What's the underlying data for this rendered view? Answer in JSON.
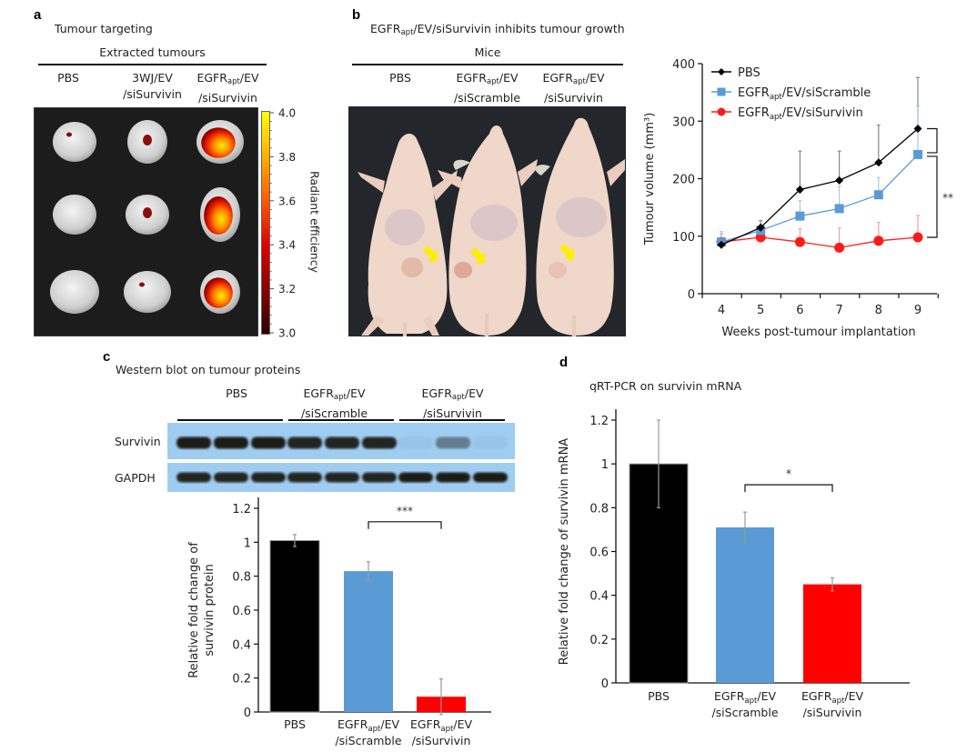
{
  "panel_a": {
    "letter": "a",
    "title": "Tumour targeting",
    "group_header": "Extracted tumours",
    "columns": [
      {
        "line1": "PBS",
        "line2": ""
      },
      {
        "line1": "3WJ/EV",
        "line2": "/siSurvivin"
      },
      {
        "line1_main": "EGFR",
        "line1_sub": "apt",
        "line1_rest": "/EV",
        "line2": "/siSurvivin"
      }
    ],
    "colorbar": {
      "label": "Radiant efficiency",
      "ticks": [
        "4.0",
        "3.8",
        "3.6",
        "3.4",
        "3.2",
        "3.0"
      ],
      "colors": [
        "#ffff00",
        "#ff8c00",
        "#ff2a00",
        "#cc0000",
        "#6a0000",
        "#1a0000"
      ]
    },
    "tumour_signal": [
      [
        0.05,
        0.25,
        0.95
      ],
      [
        0.0,
        0.2,
        0.8
      ],
      [
        0.0,
        0.02,
        0.85
      ]
    ]
  },
  "panel_b": {
    "letter": "b",
    "title_main": "EGFR",
    "title_sub": "apt",
    "title_rest": "/EV/siSurvivin inhibits tumour growth",
    "group_header": "Mice",
    "columns": [
      {
        "line1": "PBS",
        "line2": ""
      },
      {
        "line1_main": "EGFR",
        "line1_sub": "apt",
        "line1_rest": "/EV",
        "line2": "/siScramble"
      },
      {
        "line1_main": "EGFR",
        "line1_sub": "apt",
        "line1_rest": "/EV",
        "line2": "/siSurvivin"
      }
    ],
    "arrow_color": "#ffee00"
  },
  "panel_c": {
    "letter": "c",
    "title": "Western blot on tumour proteins",
    "groups": [
      {
        "line1": "PBS",
        "line2": ""
      },
      {
        "line1_main": "EGFR",
        "line1_sub": "apt",
        "line1_rest": "/EV",
        "line2": "/siScramble"
      },
      {
        "line1_main": "EGFR",
        "line1_sub": "apt",
        "line1_rest": "/EV",
        "line2": "/siSurvivin"
      }
    ],
    "blot_rows": [
      {
        "label": "Survivin",
        "band_intensity": [
          1,
          1,
          1,
          0.95,
          0.95,
          0.95,
          0.05,
          0.45,
          0.05
        ]
      },
      {
        "label": "GAPDH",
        "band_intensity": [
          0.95,
          0.95,
          0.95,
          0.95,
          0.95,
          0.95,
          1,
          1,
          1
        ]
      }
    ]
  },
  "panel_d": {
    "letter": "d",
    "title": "qRT-PCR on survivin mRNA"
  },
  "chart_data": [
    {
      "id": "tumour-volume",
      "type": "line",
      "title": "",
      "xlabel": "Weeks post-tumour implantation",
      "ylabel": "Tumour volume (mm³)",
      "x": [
        4,
        5,
        6,
        7,
        8,
        9
      ],
      "xticks": [
        "4",
        "5",
        "6",
        "7",
        "8",
        "9"
      ],
      "yticks": [
        "0",
        "100",
        "200",
        "300",
        "400"
      ],
      "ylim": [
        0,
        400
      ],
      "legend_position": "top-left",
      "series": [
        {
          "name": "PBS",
          "name_main": "PBS",
          "name_sub": "",
          "name_rest": "",
          "color": "#000000",
          "marker": "diamond",
          "error_color": "#888888",
          "values": [
            85,
            115,
            181,
            197,
            228,
            287
          ],
          "error_upper": [
            92,
            127,
            248,
            248,
            293,
            376
          ]
        },
        {
          "name": "EGFRapt/EV/siScramble",
          "name_main": "EGFR",
          "name_sub": "apt",
          "name_rest": "/EV/siScramble",
          "color": "#5b9bd5",
          "marker": "square",
          "error_color": "#a9c9ea",
          "values": [
            90,
            110,
            135,
            148,
            172,
            242
          ],
          "error_upper": [
            108,
            118,
            162,
            187,
            202,
            326
          ]
        },
        {
          "name": "EGFRapt/EV/siSurvivin",
          "name_main": "EGFR",
          "name_sub": "apt",
          "name_rest": "/EV/siSurvivin",
          "color": "#ff1a1a",
          "marker": "circle",
          "error_color": "#f5a0a0",
          "values": [
            90,
            98,
            90,
            80,
            92,
            98
          ],
          "error_upper": [
            104,
            104,
            113,
            114,
            124,
            136
          ]
        }
      ],
      "annotations": [
        {
          "text": "**",
          "between": [
            "PBS",
            "EGFRapt/EV/siSurvivin"
          ],
          "at_x": 9
        }
      ]
    },
    {
      "id": "protein-fold-change",
      "type": "bar",
      "title": "",
      "xlabel": "",
      "ylabel_line1": "Relative fold change of",
      "ylabel_line2": "survivin protein",
      "categories": [
        {
          "line1_main": "PBS",
          "line1_sub": "",
          "line1_rest": "",
          "line2": ""
        },
        {
          "line1_main": "EGFR",
          "line1_sub": "apt",
          "line1_rest": "/EV",
          "line2": "/siScramble"
        },
        {
          "line1_main": "EGFR",
          "line1_sub": "apt",
          "line1_rest": "/EV",
          "line2": "/siSurvivin"
        }
      ],
      "values": [
        1.01,
        0.83,
        0.09
      ],
      "errors": [
        0.035,
        0.055,
        0.105
      ],
      "colors": [
        "#000000",
        "#5b9bd5",
        "#ff0000"
      ],
      "yticks": [
        "0",
        "0.2",
        "0.4",
        "0.6",
        "0.8",
        "1",
        "1.2"
      ],
      "ylim": [
        0,
        1.2
      ],
      "significance": {
        "text": "***",
        "from": 1,
        "to": 2
      }
    },
    {
      "id": "mrna-fold-change",
      "type": "bar",
      "title": "qRT-PCR on survivin mRNA",
      "xlabel": "",
      "ylabel_line1": "Relative fold change of survivin mRNA",
      "ylabel_line2": "",
      "categories": [
        {
          "line1_main": "PBS",
          "line1_sub": "",
          "line1_rest": "",
          "line2": ""
        },
        {
          "line1_main": "EGFR",
          "line1_sub": "apt",
          "line1_rest": "/EV",
          "line2": "/siScramble"
        },
        {
          "line1_main": "EGFR",
          "line1_sub": "apt",
          "line1_rest": "/EV",
          "line2": "/siSurvivin"
        }
      ],
      "values": [
        1.0,
        0.71,
        0.45
      ],
      "errors": [
        0.2,
        0.07,
        0.03
      ],
      "colors": [
        "#000000",
        "#5b9bd5",
        "#ff0000"
      ],
      "yticks": [
        "0",
        "0.2",
        "0.4",
        "0.6",
        "0.8",
        "1",
        "1.2"
      ],
      "ylim": [
        0,
        1.2
      ],
      "significance": {
        "text": "*",
        "from": 1,
        "to": 2
      }
    }
  ]
}
